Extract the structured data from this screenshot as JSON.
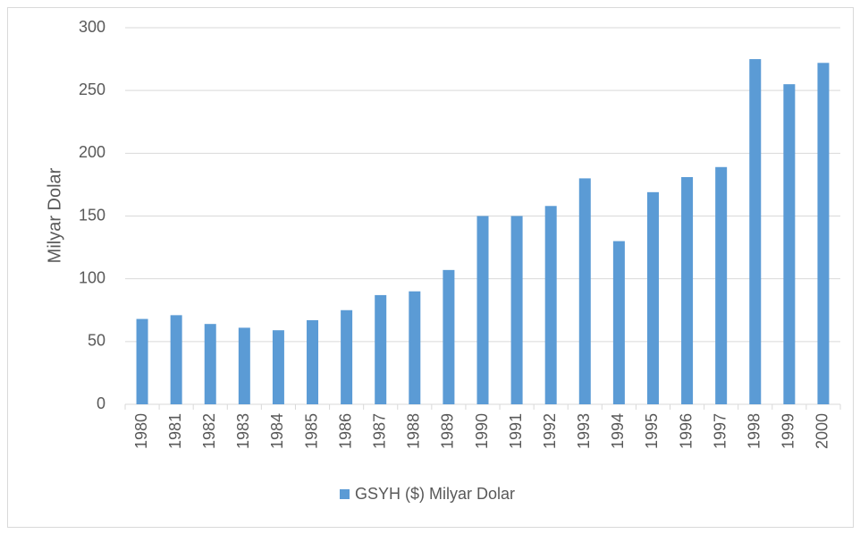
{
  "chart_data": {
    "type": "bar",
    "y_label": "Milyar Dolar",
    "categories": [
      "1980",
      "1981",
      "1982",
      "1983",
      "1984",
      "1985",
      "1986",
      "1987",
      "1988",
      "1989",
      "1990",
      "1991",
      "1992",
      "1993",
      "1994",
      "1995",
      "1996",
      "1997",
      "1998",
      "1999",
      "2000"
    ],
    "series": [
      {
        "name": "GSYH ($) Milyar Dolar",
        "color": "#5b9bd5",
        "values": [
          68,
          71,
          64,
          61,
          59,
          67,
          75,
          87,
          90,
          107,
          150,
          150,
          158,
          180,
          130,
          169,
          181,
          189,
          275,
          255,
          272
        ]
      }
    ],
    "ylim": [
      0,
      300
    ],
    "yticks": [
      0,
      50,
      100,
      150,
      200,
      250,
      300
    ],
    "grid": true,
    "legend": "bottom"
  }
}
